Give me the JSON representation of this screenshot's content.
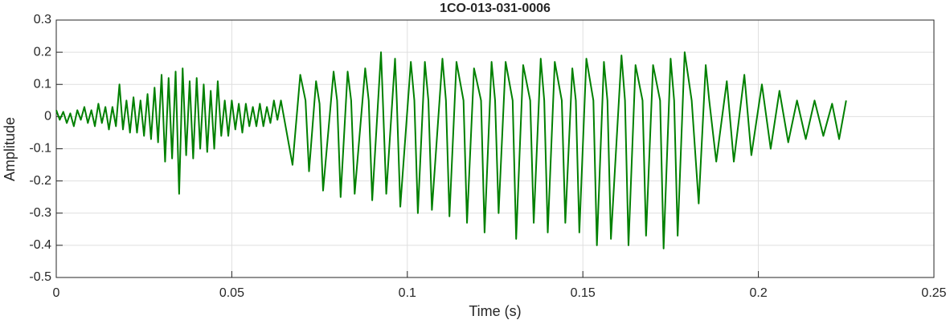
{
  "chart_data": {
    "type": "line",
    "title": "1CO-013-031-0006",
    "xlabel": "Time (s)",
    "ylabel": "Amplitude",
    "xlim": [
      0,
      0.25
    ],
    "xticks": [
      0,
      0.05,
      0.1,
      0.15,
      0.2,
      0.25
    ],
    "ylim": [
      -0.5,
      0.3
    ],
    "yticks": [
      -0.5,
      -0.4,
      -0.3,
      -0.2,
      -0.1,
      0,
      0.1,
      0.2,
      0.3
    ],
    "grid": true,
    "x": [
      0,
      0.001,
      0.002,
      0.003,
      0.004,
      0.005,
      0.006,
      0.007,
      0.008,
      0.009,
      0.01,
      0.011,
      0.012,
      0.013,
      0.014,
      0.015,
      0.016,
      0.017,
      0.018,
      0.019,
      0.02,
      0.021,
      0.022,
      0.023,
      0.024,
      0.025,
      0.026,
      0.027,
      0.028,
      0.029,
      0.03,
      0.031,
      0.032,
      0.033,
      0.034,
      0.035,
      0.036,
      0.037,
      0.038,
      0.039,
      0.04,
      0.041,
      0.042,
      0.043,
      0.044,
      0.045,
      0.046,
      0.047,
      0.048,
      0.049,
      0.05,
      0.051,
      0.052,
      0.053,
      0.054,
      0.055,
      0.056,
      0.057,
      0.058,
      0.059,
      0.06,
      0.061,
      0.062,
      0.063,
      0.064,
      0.0673,
      0.0695,
      0.071,
      0.072,
      0.074,
      0.075,
      0.076,
      0.079,
      0.08,
      0.081,
      0.083,
      0.084,
      0.085,
      0.088,
      0.089,
      0.09,
      0.0925,
      0.093,
      0.094,
      0.0965,
      0.097,
      0.098,
      0.101,
      0.102,
      0.103,
      0.105,
      0.106,
      0.107,
      0.11,
      0.111,
      0.112,
      0.114,
      0.116,
      0.117,
      0.119,
      0.121,
      0.122,
      0.124,
      0.125,
      0.126,
      0.128,
      0.13,
      0.131,
      0.133,
      0.135,
      0.136,
      0.138,
      0.139,
      0.14,
      0.142,
      0.144,
      0.145,
      0.147,
      0.148,
      0.149,
      0.151,
      0.153,
      0.154,
      0.156,
      0.157,
      0.158,
      0.161,
      0.162,
      0.163,
      0.165,
      0.167,
      0.168,
      0.17,
      0.172,
      0.173,
      0.175,
      0.176,
      0.177,
      0.179,
      0.181,
      0.183,
      0.185,
      0.186,
      0.188,
      0.191,
      0.193,
      0.196,
      0.198,
      0.201,
      0.2035,
      0.206,
      0.2085,
      0.211,
      0.2135,
      0.216,
      0.2185,
      0.221,
      0.223,
      0.225
    ],
    "series": [
      {
        "color": "#008000",
        "values": [
          0.02,
          -0.01,
          0.015,
          -0.02,
          0.01,
          -0.03,
          0.02,
          -0.01,
          0.03,
          -0.02,
          0.02,
          -0.03,
          0.04,
          -0.02,
          0.03,
          -0.04,
          0.03,
          -0.03,
          0.1,
          -0.04,
          0.05,
          -0.05,
          0.06,
          -0.05,
          0.05,
          -0.06,
          0.07,
          -0.07,
          0.09,
          -0.08,
          0.13,
          -0.14,
          0.12,
          -0.13,
          0.14,
          -0.24,
          0.15,
          -0.12,
          0.11,
          -0.13,
          0.12,
          -0.1,
          0.1,
          -0.11,
          0.08,
          -0.1,
          0.11,
          -0.06,
          0.05,
          -0.06,
          0.05,
          -0.04,
          0.04,
          -0.05,
          0.04,
          -0.03,
          0.03,
          -0.03,
          0.04,
          -0.03,
          0.03,
          -0.02,
          0.05,
          -0.01,
          0.05,
          -0.15,
          0.13,
          0.05,
          -0.17,
          0.11,
          0.04,
          -0.23,
          0.14,
          0.05,
          -0.25,
          0.14,
          0.05,
          -0.24,
          0.15,
          0.05,
          -0.26,
          0.2,
          0.06,
          -0.24,
          0.18,
          0.05,
          -0.28,
          0.17,
          0.05,
          -0.3,
          0.17,
          0.05,
          -0.29,
          0.18,
          0.05,
          -0.31,
          0.17,
          0.05,
          -0.33,
          0.15,
          0.05,
          -0.36,
          0.17,
          0.05,
          -0.3,
          0.17,
          0.05,
          -0.38,
          0.16,
          0.05,
          -0.33,
          0.18,
          0.05,
          -0.36,
          0.17,
          0.05,
          -0.33,
          0.15,
          0.05,
          -0.36,
          0.18,
          0.05,
          -0.4,
          0.17,
          0.05,
          -0.38,
          0.19,
          0.05,
          -0.4,
          0.16,
          0.05,
          -0.37,
          0.16,
          0.05,
          -0.41,
          0.18,
          0.05,
          -0.37,
          0.2,
          0.05,
          -0.27,
          0.16,
          0.05,
          -0.14,
          0.11,
          -0.14,
          0.13,
          -0.12,
          0.1,
          -0.1,
          0.08,
          -0.08,
          0.05,
          -0.07,
          0.05,
          -0.06,
          0.04,
          -0.07,
          0.05
        ]
      }
    ]
  }
}
